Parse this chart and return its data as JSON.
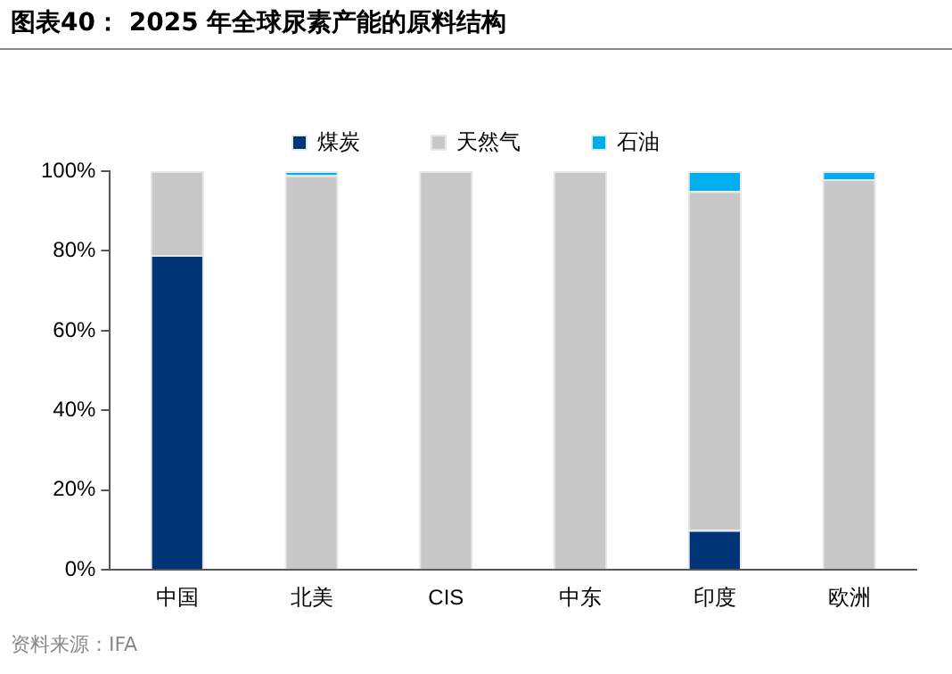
{
  "chart_data": {
    "type": "bar",
    "title": "图表40：  2025 年全球尿素产能的原料结构",
    "categories": [
      "中国",
      "北美",
      "CIS",
      "中东",
      "印度",
      "欧洲"
    ],
    "stacked": true,
    "series": [
      {
        "name": "煤炭",
        "color": "#003478",
        "values": [
          79,
          0,
          0,
          0,
          10,
          0
        ]
      },
      {
        "name": "天然气",
        "color": "#c8c8c8",
        "values": [
          21,
          99,
          100,
          100,
          85,
          98
        ]
      },
      {
        "name": "石油",
        "color": "#00aeef",
        "values": [
          0,
          1,
          0,
          0,
          5,
          2
        ]
      }
    ],
    "ylim": [
      0,
      100
    ],
    "yticks": [
      {
        "value": 0,
        "label": "0%"
      },
      {
        "value": 20,
        "label": "20%"
      },
      {
        "value": 40,
        "label": "40%"
      },
      {
        "value": 60,
        "label": "60%"
      },
      {
        "value": 80,
        "label": "80%"
      },
      {
        "value": 100,
        "label": "100%"
      }
    ],
    "grid": false,
    "legend": "top",
    "annotations": [
      "资料来源：IFA"
    ]
  }
}
